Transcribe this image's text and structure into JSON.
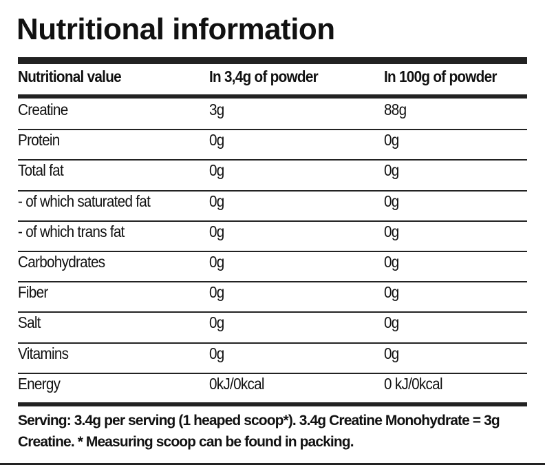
{
  "title": "Nutritional information",
  "table": {
    "header": [
      "Nutritional value",
      "In 3,4g of powder",
      "In 100g of powder"
    ],
    "rows": [
      [
        "Creatine",
        "3g",
        "88g"
      ],
      [
        "Protein",
        "0g",
        "0g"
      ],
      [
        "Total fat",
        "0g",
        "0g"
      ],
      [
        "-  of which saturated fat",
        "0g",
        "0g"
      ],
      [
        "-  of which trans fat",
        "0g",
        "0g"
      ],
      [
        "Carbohydrates",
        "0g",
        "0g"
      ],
      [
        "Fiber",
        "0g",
        "0g"
      ],
      [
        "Salt",
        "0g",
        "0g"
      ],
      [
        "Vitamins",
        "0g",
        "0g"
      ],
      [
        "Energy",
        "0kJ/0kcal",
        "0 kJ/0kcal"
      ]
    ]
  },
  "footnote": "Serving: 3.4g per serving (1 heaped scoop*). 3.4g Creatine Monohydrate = 3g Creatine. * Measuring scoop can be found in packing."
}
